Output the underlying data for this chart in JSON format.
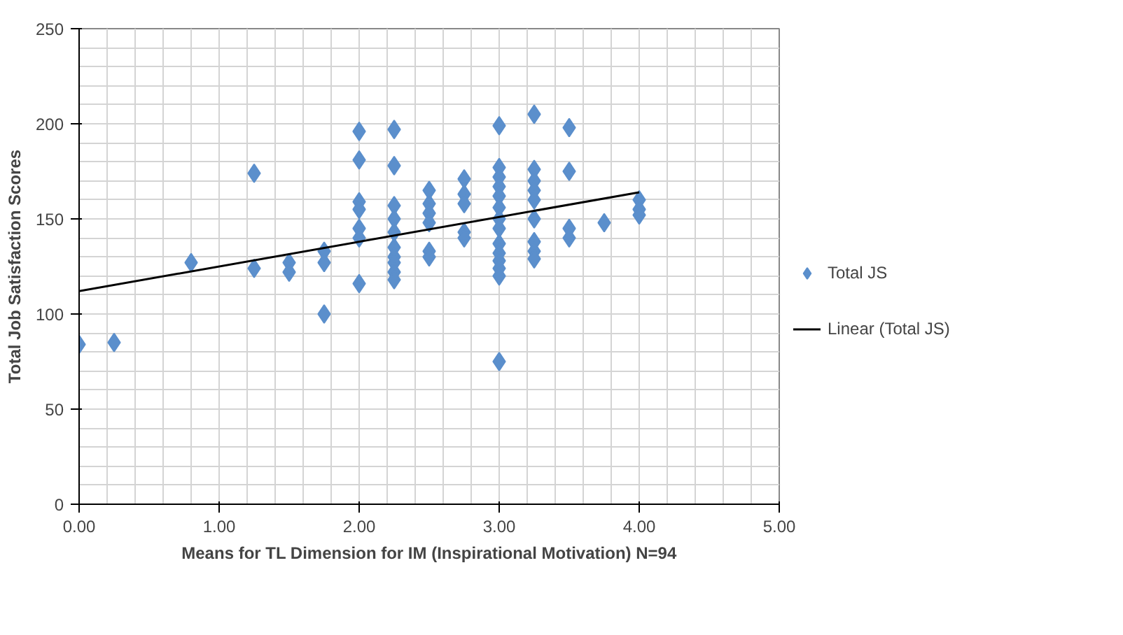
{
  "chart_data": {
    "type": "scatter",
    "xlabel": "Means for TL Dimension for IM (Inspirational Motivation) N=94",
    "ylabel": "Total Job Satisfaction Scores",
    "xlim": [
      0,
      5
    ],
    "xticks": [
      {
        "value": 0,
        "label": "0.00"
      },
      {
        "value": 1,
        "label": "1.00"
      },
      {
        "value": 2,
        "label": "2.00"
      },
      {
        "value": 3,
        "label": "3.00"
      },
      {
        "value": 4,
        "label": "4.00"
      },
      {
        "value": 5,
        "label": "5.00"
      }
    ],
    "ylim": [
      0,
      250
    ],
    "yticks": [
      0,
      50,
      100,
      150,
      200,
      250
    ],
    "grid": true,
    "legend": "right",
    "series": [
      {
        "name": "Total JS",
        "marker": "diamond",
        "color": "#5b8fcc",
        "x": [
          0,
          0.25,
          0.8,
          1.25,
          1.25,
          1.5,
          1.5,
          1.75,
          1.75,
          1.75,
          2,
          2,
          2,
          2,
          2,
          2,
          2,
          2.25,
          2.25,
          2.25,
          2.25,
          2.25,
          2.25,
          2.25,
          2.25,
          2.25,
          2.25,
          2.5,
          2.5,
          2.5,
          2.5,
          2.5,
          2.5,
          2.75,
          2.75,
          2.75,
          2.75,
          2.75,
          3,
          3,
          3,
          3,
          3,
          3,
          3,
          3,
          3,
          3,
          3,
          3,
          3,
          3,
          3.25,
          3.25,
          3.25,
          3.25,
          3.25,
          3.25,
          3.25,
          3.25,
          3.25,
          3.5,
          3.5,
          3.5,
          3.5,
          3.75,
          4,
          4,
          4
        ],
        "values": [
          84,
          85,
          127,
          174,
          124,
          127,
          122,
          133,
          127,
          100,
          196,
          181,
          159,
          155,
          145,
          140,
          116,
          197,
          178,
          157,
          150,
          143,
          135,
          130,
          127,
          122,
          118,
          165,
          158,
          153,
          148,
          133,
          130,
          171,
          163,
          158,
          143,
          140,
          199,
          177,
          172,
          167,
          162,
          156,
          150,
          145,
          137,
          132,
          128,
          124,
          120,
          75,
          205,
          176,
          170,
          165,
          160,
          150,
          138,
          133,
          129,
          198,
          175,
          145,
          140,
          148,
          160,
          155,
          152
        ]
      },
      {
        "name": "Linear (Total JS)",
        "type": "line",
        "color": "#000000",
        "x": [
          0,
          4
        ],
        "values": [
          112,
          164
        ]
      }
    ]
  }
}
